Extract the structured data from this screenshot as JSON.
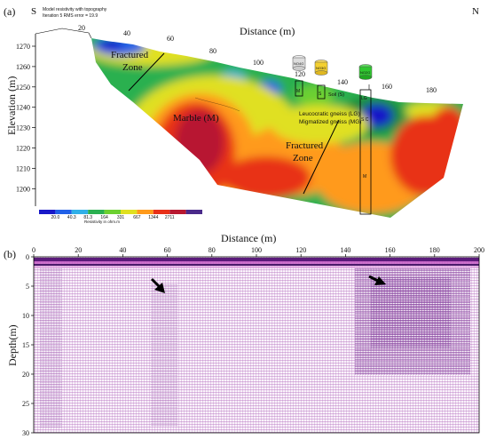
{
  "panel_a": {
    "label": "(a)",
    "south": "S",
    "north": "N",
    "model_title": "Model resistivity with topography",
    "iteration_text": "Iteration 5 RMS error = 19.9",
    "x_title": "Distance (m)",
    "y_title": "Elevation (m)",
    "x_ticks": [
      "20",
      "40",
      "60",
      "80",
      "100",
      "120",
      "140",
      "160",
      "180"
    ],
    "y_ticks": [
      "1270",
      "1260",
      "1250",
      "1240",
      "1230",
      "1220",
      "1210",
      "1200"
    ],
    "annotations": {
      "fractured_upper_1": "Fractured",
      "fractured_upper_2": "Zone",
      "marble": "Marble (M)",
      "fractured_lower_1": "Fractured",
      "fractured_lower_2": "Zone",
      "soil": "Soil (S)",
      "lg": "Leucocratic gneiss (LG)",
      "mg": "Migmatized gneiss (MG)"
    },
    "boreholes": [
      "NO4G",
      "NO3G",
      "NO2G"
    ],
    "borehole_letters": {
      "m1": "M",
      "s1": "S",
      "lg": "LG",
      "sc": "S C",
      "m2": "M"
    },
    "scale_values": [
      "20.0",
      "40.3",
      "81.3",
      "164",
      "331",
      "667",
      "1344",
      "2711"
    ],
    "scale_colors": [
      "#1818c8",
      "#2060e8",
      "#30b0e8",
      "#2ab050",
      "#6cd030",
      "#e0e020",
      "#ff9a1a",
      "#e83018",
      "#b81830",
      "#4a2a8a"
    ],
    "scale_label": "Resistivity in ohm.m"
  },
  "panel_b": {
    "label": "(b)",
    "x_title": "Distance (m)",
    "y_title": "Depth(m)",
    "x_ticks": [
      "0",
      "20",
      "40",
      "60",
      "80",
      "100",
      "120",
      "140",
      "160",
      "180",
      "200"
    ],
    "y_ticks": [
      "0",
      "5",
      "10",
      "15",
      "20",
      "25",
      "30"
    ]
  },
  "chart_data": {
    "type": "heatmap",
    "title": "Model resistivity with topography",
    "xlabel": "Distance (m)",
    "ylabel": "Elevation (m)",
    "xlim": [
      10,
      195
    ],
    "ylim": [
      1198,
      1277
    ],
    "colorbar": {
      "label": "Resistivity in ohm.m",
      "values": [
        20.0,
        40.3,
        81.3,
        164,
        331,
        667,
        1344,
        2711
      ]
    }
  },
  "colors": {
    "grid": "#c8c8c8",
    "arrow": "#000000",
    "gpr_band": "#8a1a9a"
  }
}
